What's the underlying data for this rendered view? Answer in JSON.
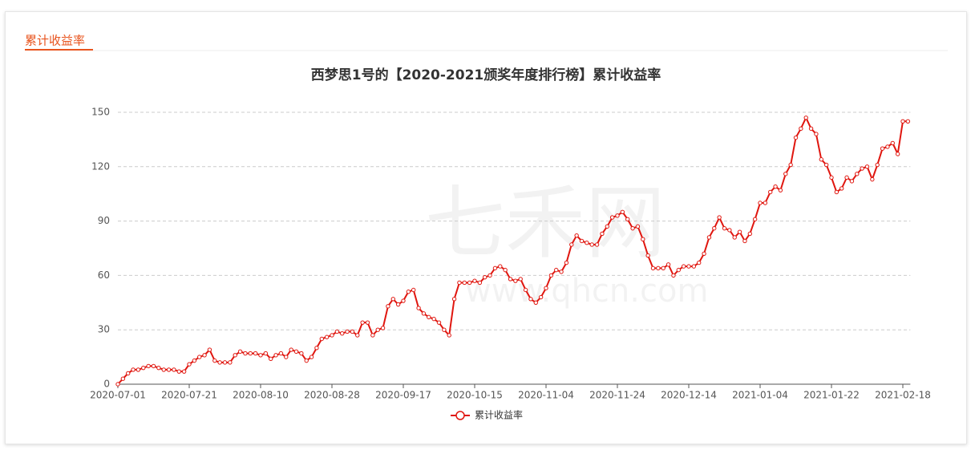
{
  "card": {
    "title": "累计收益率"
  },
  "watermark": {
    "brand": "七禾网",
    "url": "www.qhcn.com"
  },
  "chart_data": {
    "type": "line",
    "title": "西梦思1号的【2020-2021颁奖年度排行榜】累计收益率",
    "categories": [
      "2020-07-01",
      null,
      null,
      null,
      null,
      null,
      null,
      null,
      null,
      null,
      null,
      null,
      null,
      null,
      "2020-07-21",
      null,
      null,
      null,
      null,
      null,
      null,
      null,
      null,
      null,
      null,
      null,
      null,
      null,
      "2020-08-10",
      null,
      null,
      null,
      null,
      null,
      null,
      null,
      null,
      null,
      null,
      null,
      null,
      null,
      "2020-08-28",
      null,
      null,
      null,
      null,
      null,
      null,
      null,
      null,
      null,
      null,
      null,
      null,
      null,
      "2020-09-17",
      null,
      null,
      null,
      null,
      null,
      null,
      null,
      null,
      null,
      null,
      null,
      null,
      null,
      "2020-10-15",
      null,
      null,
      null,
      null,
      null,
      null,
      null,
      null,
      null,
      null,
      null,
      null,
      null,
      "2020-11-04",
      null,
      null,
      null,
      null,
      null,
      null,
      null,
      null,
      null,
      null,
      null,
      null,
      null,
      "2020-11-24",
      null,
      null,
      null,
      null,
      null,
      null,
      null,
      null,
      null,
      null,
      null,
      null,
      null,
      "2020-12-14",
      null,
      null,
      null,
      null,
      null,
      null,
      null,
      null,
      null,
      null,
      null,
      null,
      null,
      "2021-01-04",
      null,
      null,
      null,
      null,
      null,
      null,
      null,
      null,
      null,
      null,
      null,
      null,
      null,
      "2021-01-22",
      null,
      null,
      null,
      null,
      null,
      null,
      null,
      null,
      null,
      null,
      null,
      null,
      null,
      "2021-02-18",
      null
    ],
    "series": [
      {
        "name": "累计收益率",
        "color": "#e0160f",
        "values": [
          0,
          3,
          6,
          8,
          8,
          9,
          10,
          10,
          9,
          8,
          8,
          8,
          7,
          7,
          11,
          13,
          15,
          16,
          19,
          13,
          12,
          12,
          12,
          16,
          18,
          17,
          17,
          17,
          16,
          17,
          14,
          16,
          17,
          15,
          19,
          18,
          17,
          13,
          15,
          20,
          25,
          26,
          27,
          29,
          28,
          29,
          29,
          27,
          34,
          34,
          27,
          30,
          31,
          43,
          47,
          44,
          46,
          51,
          52,
          42,
          39,
          37,
          36,
          34,
          30,
          27,
          47,
          56,
          56,
          56,
          57,
          56,
          59,
          60,
          64,
          65,
          63,
          58,
          57,
          58,
          52,
          47,
          45,
          48,
          53,
          60,
          63,
          62,
          67,
          77,
          82,
          79,
          78,
          77,
          77,
          83,
          87,
          92,
          93,
          95,
          91,
          86,
          87,
          80,
          71,
          64,
          64,
          64,
          66,
          60,
          63,
          65,
          65,
          65,
          67,
          72,
          81,
          86,
          92,
          86,
          85,
          81,
          84,
          79,
          83,
          91,
          100,
          100,
          106,
          109,
          107,
          116,
          121,
          136,
          141,
          147,
          141,
          138,
          124,
          121,
          114,
          106,
          108,
          114,
          112,
          116,
          119,
          120,
          113,
          121,
          130,
          131,
          133,
          127,
          145,
          145
        ]
      }
    ],
    "ylim": [
      0,
      150
    ],
    "yticks": [
      0,
      30,
      60,
      90,
      120,
      150
    ],
    "grid": true,
    "legend": "bottom"
  }
}
